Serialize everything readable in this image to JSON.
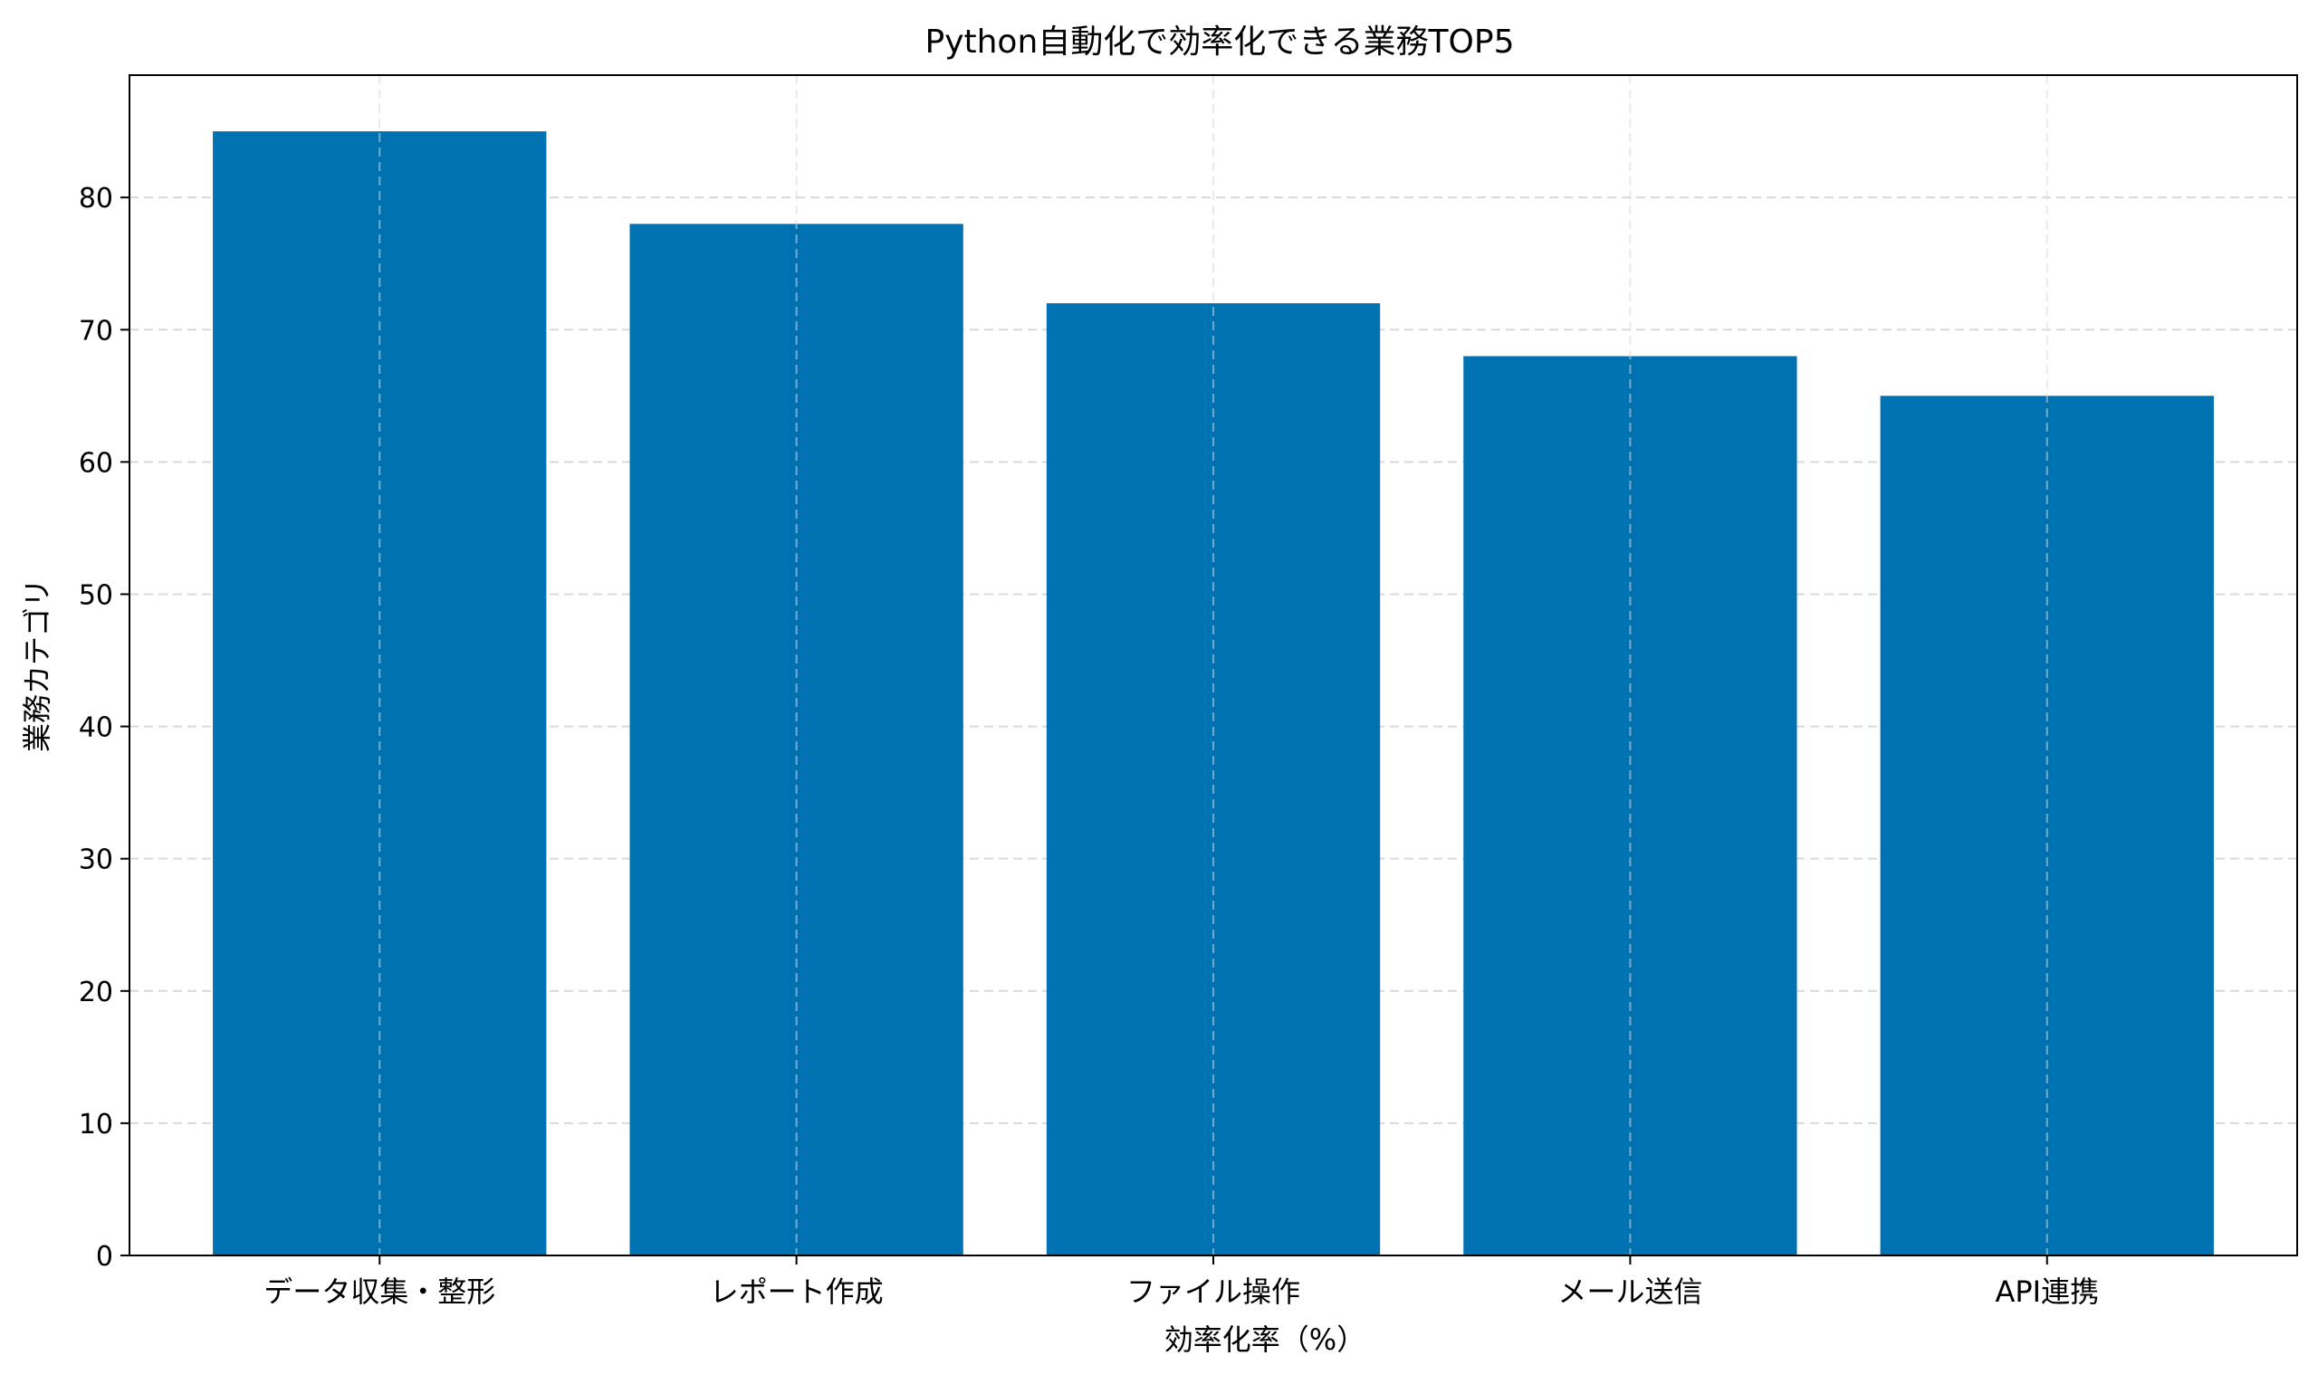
{
  "chart_data": {
    "type": "bar",
    "title": "Python自動化で効率化できる業務TOP5",
    "xlabel": "効率化率（%）",
    "ylabel": "業務カテゴリ",
    "categories": [
      "データ収集・整形",
      "レポート作成",
      "ファイル操作",
      "メール送信",
      "API連携"
    ],
    "values": [
      85,
      78,
      72,
      68,
      65
    ],
    "ylim": [
      0,
      89.25
    ],
    "yticks": [
      0,
      10,
      20,
      30,
      40,
      50,
      60,
      70,
      80
    ],
    "grid": true,
    "legend": "none",
    "colors": {
      "bar": "#0072B2",
      "grid": "#d9d9d9",
      "axis": "#000000"
    }
  }
}
